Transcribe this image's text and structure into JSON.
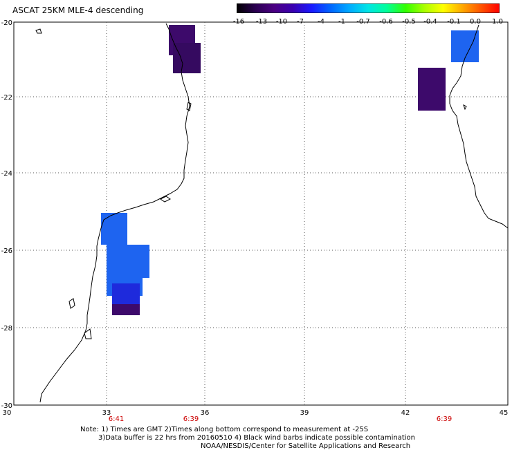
{
  "title": "ASCAT 25KM MLE-4 descending",
  "colorbar": {
    "labels": [
      "-16",
      "-13",
      "-10",
      "-7",
      "-4",
      "-1",
      "-0.7",
      "-0.6",
      "-0.5",
      "-0.4",
      "-0.1",
      "0.0",
      "1.0"
    ],
    "colors": [
      "#000000",
      "#2a0050",
      "#4b0082",
      "#3a00b0",
      "#1a1aff",
      "#0066ff",
      "#00aaff",
      "#00e5e5",
      "#00ff99",
      "#33ff00",
      "#aaff00",
      "#ffff00",
      "#ffaa00",
      "#ff5500",
      "#ff0000"
    ]
  },
  "axes": {
    "x_ticks": [
      "30",
      "33",
      "36",
      "39",
      "42",
      "45"
    ],
    "y_ticks": [
      "-20",
      "-22",
      "-24",
      "-26",
      "-28",
      "-30"
    ],
    "time_labels": [
      "6:41",
      "6:39",
      "6:39"
    ],
    "time_color": "#cc0000"
  },
  "colors": {
    "purple": "#3d0a6b",
    "dark_purple": "#350a60",
    "blue": "#1e64f0",
    "dark_blue": "#1e2adc",
    "coast": "#000000",
    "grid": "#555555"
  },
  "note": {
    "line1": "Note: 1) Times are GMT 2)Times along bottom correspond to measurement at -25S",
    "line2": "3)Data buffer is 22 hrs from 20160510 4) Black wind barbs indicate possible contamination",
    "line3": "NOAA/NESDIS/Center for Satellite Applications and Research"
  }
}
